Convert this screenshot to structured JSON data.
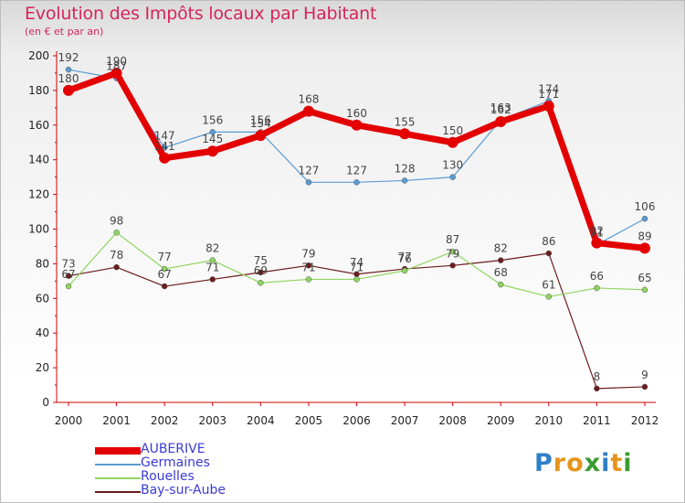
{
  "chart_data": {
    "type": "line",
    "title": "Evolution des Impôts locaux par Habitant",
    "subtitle": "(en € et par an)",
    "xlabel": "",
    "ylabel": "",
    "ylim": [
      0,
      200
    ],
    "yticks": [
      0,
      20,
      40,
      60,
      80,
      100,
      120,
      140,
      160,
      180,
      200
    ],
    "categories": [
      "2000",
      "2001",
      "2002",
      "2003",
      "2004",
      "2005",
      "2006",
      "2007",
      "2008",
      "2009",
      "2010",
      "2011",
      "2012"
    ],
    "grid": false,
    "legend_position": "bottom-left",
    "series": [
      {
        "name": "AUBERIVE",
        "color": "#e30000",
        "values": [
          180,
          190,
          141,
          145,
          154,
          168,
          160,
          155,
          150,
          162,
          171,
          92,
          89
        ]
      },
      {
        "name": "Germaines",
        "color": "#5a9bd4",
        "values": [
          192,
          187,
          147,
          156,
          156,
          127,
          127,
          128,
          130,
          163,
          174,
          91,
          106
        ]
      },
      {
        "name": "Rouelles",
        "color": "#8fd460",
        "values": [
          67,
          98,
          77,
          82,
          69,
          71,
          71,
          76,
          87,
          68,
          61,
          66,
          65
        ]
      },
      {
        "name": "Bay-sur-Aube",
        "color": "#6b1c1c",
        "values": [
          73,
          78,
          67,
          71,
          75,
          79,
          74,
          77,
          79,
          82,
          86,
          8,
          9
        ]
      }
    ]
  },
  "logo": {
    "letters": [
      "P",
      "r",
      "o",
      "x",
      "i",
      "t",
      "i"
    ]
  }
}
